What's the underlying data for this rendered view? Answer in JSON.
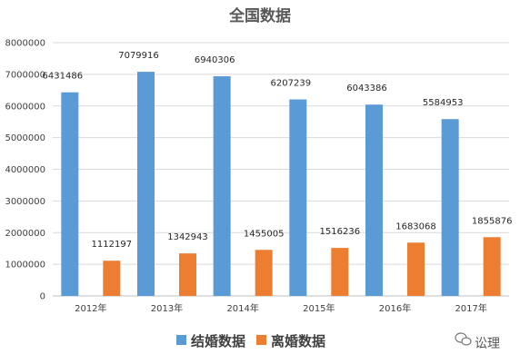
{
  "chart_data": {
    "type": "bar",
    "title": "全国数据",
    "categories": [
      "2012年",
      "2013年",
      "2014年",
      "2015年",
      "2016年",
      "2017年"
    ],
    "series": [
      {
        "name": "结婚数据",
        "color": "#5B9BD5",
        "values": [
          6431486,
          7079916,
          6940306,
          6207239,
          6043386,
          5584953
        ]
      },
      {
        "name": "离婚数据",
        "color": "#ED7D31",
        "values": [
          1112197,
          1342943,
          1455005,
          1516236,
          1683068,
          1855876
        ]
      }
    ],
    "ylim": [
      0,
      8000000
    ],
    "yticks": [
      0,
      1000000,
      2000000,
      3000000,
      4000000,
      5000000,
      6000000,
      7000000,
      8000000
    ],
    "grid": true,
    "legend_position": "bottom",
    "data_labels": true
  },
  "watermark": {
    "text": "讼理",
    "icon": "wechat-icon"
  }
}
